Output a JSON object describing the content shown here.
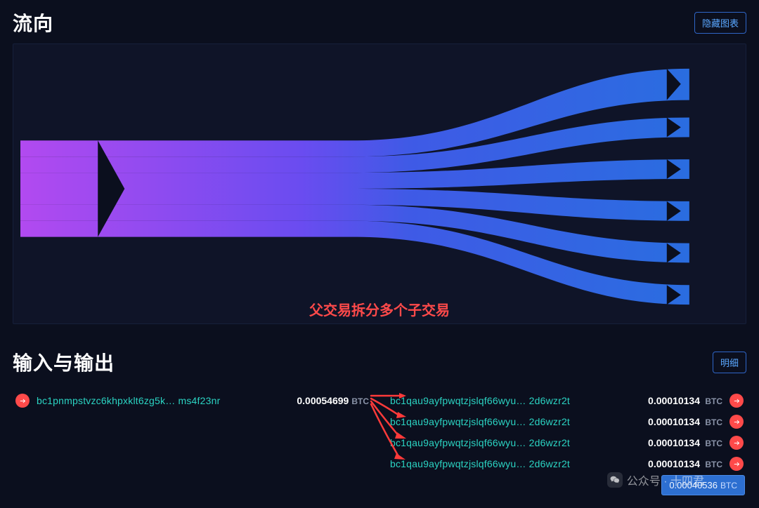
{
  "flow": {
    "title": "流向",
    "hide_btn": "隐藏图表",
    "annotation": "父交易拆分多个子交易",
    "chart": {
      "type": "sankey",
      "background": "#0f1428",
      "gradient_left": "#b24af0",
      "gradient_mid": "#6a4cf0",
      "gradient_right": "#2a6de0",
      "arrow_fill": "#0b0f1e",
      "inputs": 1,
      "outputs": 6,
      "input_width": 120,
      "output_height": 28
    }
  },
  "io": {
    "title": "输入与输出",
    "detail_btn": "明细",
    "unit": "BTC",
    "input": {
      "address": "bc1pnmpstvzc6khpxklt6zg5k… ms4f23nr",
      "amount": "0.00054699"
    },
    "outputs": [
      {
        "address": "bc1qau9ayfpwqtzjslqf66wyu… 2d6wzr2t",
        "amount": "0.00010134"
      },
      {
        "address": "bc1qau9ayfpwqtzjslqf66wyu… 2d6wzr2t",
        "amount": "0.00010134"
      },
      {
        "address": "bc1qau9ayfpwqtzjslqf66wyu… 2d6wzr2t",
        "amount": "0.00010134"
      },
      {
        "address": "bc1qau9ayfpwqtzjslqf66wyu… 2d6wzr2t",
        "amount": "0.00010134"
      }
    ],
    "tooltip_value": "0.00040536"
  },
  "watermark": {
    "text": "公众号 · 十四君"
  }
}
